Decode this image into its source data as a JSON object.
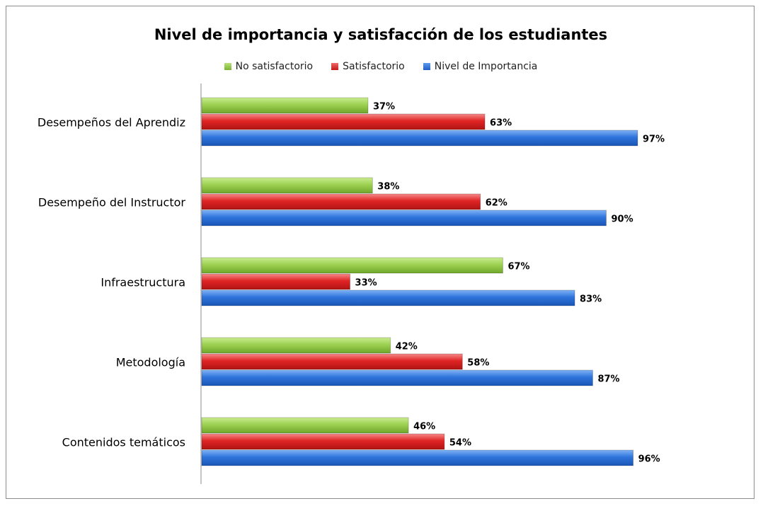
{
  "chart_data": {
    "type": "bar",
    "orientation": "horizontal",
    "title": "Nivel de importancia y satisfacción de los estudiantes",
    "categories": [
      "Desempeños del Aprendiz",
      "Desempeño del Instructor",
      "Infraestructura",
      "Metodología",
      "Contenidos temáticos"
    ],
    "series": [
      {
        "name": "No satisfactorio",
        "color": "#92d050",
        "values": [
          37,
          38,
          67,
          42,
          46
        ],
        "labels": [
          "37%",
          "38%",
          "67%",
          "42%",
          "46%"
        ]
      },
      {
        "name": "Satisfactorio",
        "color": "#e02020",
        "values": [
          63,
          62,
          33,
          58,
          54
        ],
        "labels": [
          "63%",
          "62%",
          "33%",
          "58%",
          "54%"
        ]
      },
      {
        "name": "Nivel de Importancia",
        "color": "#2b6fd6",
        "values": [
          97,
          90,
          83,
          87,
          96
        ],
        "labels": [
          "97%",
          "90%",
          "83%",
          "87%",
          "96%"
        ]
      }
    ],
    "value_unit": "%",
    "xlim": [
      0,
      100
    ],
    "legend": "top",
    "grid": false
  }
}
